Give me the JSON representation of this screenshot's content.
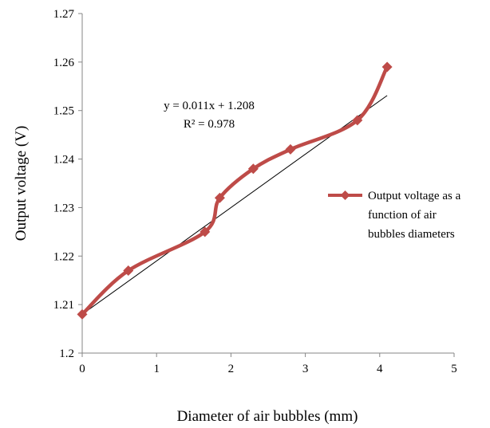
{
  "chart_data": {
    "type": "line",
    "title": "",
    "xlabel": "Diameter of air bubbles (mm)",
    "ylabel": "Output voltage (V)",
    "xlim": [
      0,
      5
    ],
    "ylim": [
      1.2,
      1.27
    ],
    "x_ticks": [
      "0",
      "1",
      "2",
      "3",
      "4",
      "5"
    ],
    "y_ticks": [
      "1.2",
      "1.21",
      "1.22",
      "1.23",
      "1.24",
      "1.25",
      "1.26",
      "1.27"
    ],
    "grid": false,
    "legend_position": "right",
    "series": [
      {
        "name": "Output voltage as a function of air bubbles diameters",
        "line_style": "smoothed",
        "marker": "diamond",
        "color": "#be4b48",
        "x": [
          0,
          0.62,
          1.65,
          1.85,
          2.3,
          2.8,
          3.7,
          4.1
        ],
        "y": [
          1.208,
          1.217,
          1.225,
          1.232,
          1.238,
          1.242,
          1.248,
          1.259
        ]
      }
    ],
    "trendline": {
      "type": "linear",
      "slope": 0.011,
      "intercept": 1.208,
      "x_range": [
        0,
        4.1
      ],
      "color": "#000000",
      "equation": "y = 0.011x + 1.208",
      "r_squared": "R² = 0.978"
    },
    "legend_lines": [
      "Output voltage as a",
      "function of air",
      "bubbles diameters"
    ]
  }
}
